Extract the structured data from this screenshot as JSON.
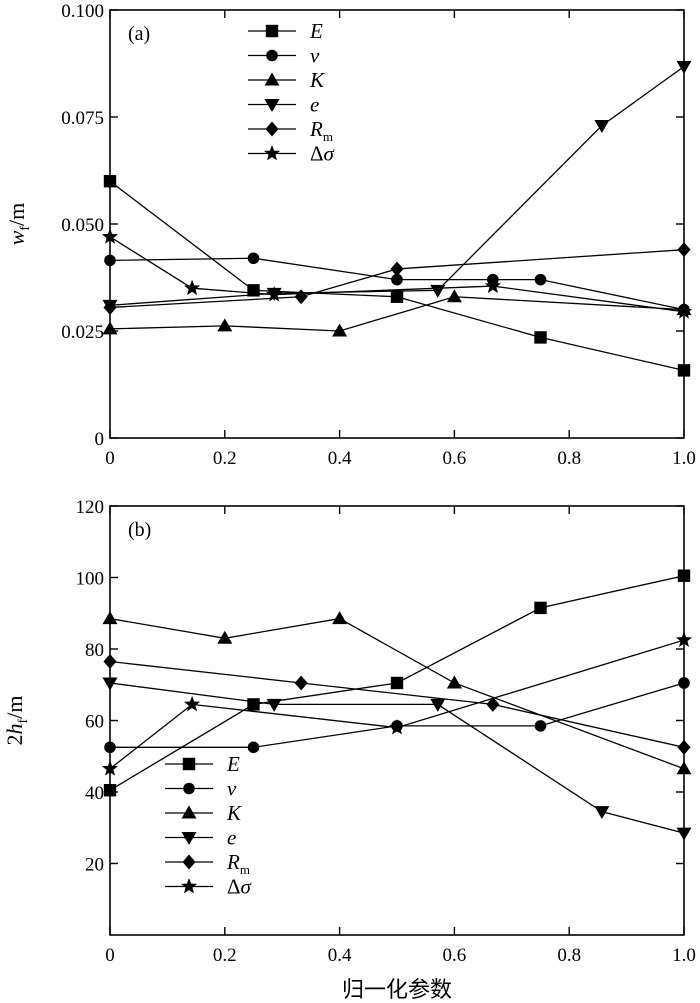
{
  "chart_data": [
    {
      "type": "line",
      "panel_label": "(a)",
      "ylabel": "w_f/m",
      "ylabel_parts": {
        "main": "w",
        "sub": "f",
        "unit": "/m"
      },
      "xlim": [
        0,
        1.0
      ],
      "ylim": [
        0,
        0.1
      ],
      "xticks": [
        "0",
        "0.2",
        "0.4",
        "0.6",
        "0.8",
        "1.0"
      ],
      "xtick_values": [
        0,
        0.2,
        0.4,
        0.6,
        0.8,
        1.0
      ],
      "yticks": [
        "0",
        "0.025",
        "0.050",
        "0.075",
        "0.100"
      ],
      "ytick_values": [
        0,
        0.025,
        0.05,
        0.075,
        0.1
      ],
      "legend_position": "top-center",
      "grid": false,
      "series": [
        {
          "name": "E",
          "marker": "square",
          "x": [
            0.0,
            0.25,
            0.5,
            0.75,
            1.0
          ],
          "y": [
            0.06,
            0.0345,
            0.033,
            0.0235,
            0.0158
          ]
        },
        {
          "name": "ν",
          "marker": "circle",
          "x": [
            0.0,
            0.25,
            0.5,
            0.667,
            0.75,
            1.0
          ],
          "y": [
            0.0415,
            0.042,
            0.037,
            0.037,
            0.037,
            0.03
          ]
        },
        {
          "name": "K",
          "marker": "triangle-up",
          "x": [
            0.0,
            0.2,
            0.4,
            0.6,
            1.0
          ],
          "y": [
            0.0255,
            0.0262,
            0.025,
            0.033,
            0.03
          ]
        },
        {
          "name": "e",
          "marker": "triangle-down",
          "x": [
            0.0,
            0.286,
            0.571,
            0.857,
            1.0
          ],
          "y": [
            0.031,
            0.0338,
            0.0345,
            0.073,
            0.0868
          ]
        },
        {
          "name": "R_m",
          "marker": "diamond",
          "x": [
            0.0,
            0.333,
            0.5,
            1.0
          ],
          "y": [
            0.0305,
            0.033,
            0.0395,
            0.044
          ]
        },
        {
          "name": "Δσ",
          "marker": "star",
          "x": [
            0.0,
            0.143,
            0.286,
            0.667,
            1.0
          ],
          "y": [
            0.047,
            0.035,
            0.0335,
            0.0355,
            0.0295
          ]
        }
      ]
    },
    {
      "type": "line",
      "panel_label": "(b)",
      "xlabel": "归一化参数",
      "ylabel": "2h_f/m",
      "ylabel_parts": {
        "prefix": "2",
        "main": "h",
        "sub": "f",
        "unit": "/m"
      },
      "xlim": [
        0,
        1.0
      ],
      "ylim": [
        0,
        120
      ],
      "xticks": [
        "0",
        "0.2",
        "0.4",
        "0.6",
        "0.8",
        "1.0"
      ],
      "xtick_values": [
        0,
        0.2,
        0.4,
        0.6,
        0.8,
        1.0
      ],
      "yticks": [
        "20",
        "40",
        "60",
        "80",
        "100",
        "120"
      ],
      "ytick_values": [
        20,
        40,
        60,
        80,
        100,
        120
      ],
      "legend_position": "bottom-left",
      "grid": false,
      "series": [
        {
          "name": "E",
          "marker": "square",
          "x": [
            0.0,
            0.25,
            0.5,
            0.75,
            1.0
          ],
          "y": [
            40.5,
            64.5,
            70.5,
            91.5,
            100.5
          ]
        },
        {
          "name": "ν",
          "marker": "circle",
          "x": [
            0.0,
            0.25,
            0.5,
            0.75,
            1.0
          ],
          "y": [
            52.5,
            52.5,
            58.5,
            58.5,
            70.5
          ]
        },
        {
          "name": "K",
          "marker": "triangle-up",
          "x": [
            0.0,
            0.2,
            0.4,
            0.6,
            1.0
          ],
          "y": [
            88.5,
            83.0,
            88.5,
            70.5,
            46.5
          ]
        },
        {
          "name": "e",
          "marker": "triangle-down",
          "x": [
            0.0,
            0.286,
            0.571,
            0.857,
            1.0
          ],
          "y": [
            70.5,
            64.5,
            64.5,
            34.5,
            28.5
          ]
        },
        {
          "name": "R_m",
          "marker": "diamond",
          "x": [
            0.0,
            0.333,
            0.667,
            1.0
          ],
          "y": [
            76.5,
            70.5,
            64.5,
            52.5
          ]
        },
        {
          "name": "Δσ",
          "marker": "star",
          "x": [
            0.0,
            0.143,
            0.5,
            1.0
          ],
          "y": [
            46.5,
            64.5,
            58.0,
            82.5
          ]
        }
      ]
    }
  ]
}
